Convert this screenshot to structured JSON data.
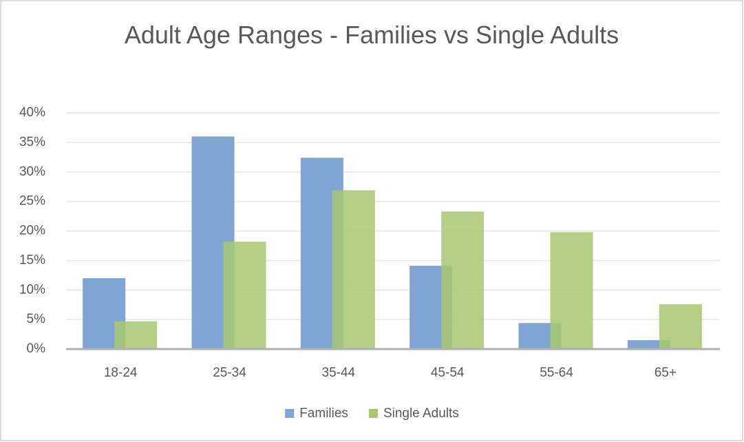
{
  "chart_data": {
    "type": "bar",
    "title": "Adult Age Ranges - Families vs Single Adults",
    "categories": [
      "18-24",
      "25-34",
      "35-44",
      "45-54",
      "55-64",
      "65+"
    ],
    "series": [
      {
        "name": "Families",
        "color": "#7fa5d4",
        "values": [
          12.0,
          36.0,
          32.4,
          14.1,
          4.4,
          1.5
        ]
      },
      {
        "name": "Single Adults",
        "color": "#a8c870",
        "values": [
          4.7,
          18.2,
          26.9,
          23.3,
          19.8,
          7.6
        ]
      }
    ],
    "ylim": [
      0,
      40
    ],
    "yticks": [
      {
        "value": 0,
        "label": "0%"
      },
      {
        "value": 5,
        "label": "5%"
      },
      {
        "value": 10,
        "label": "10%"
      },
      {
        "value": 15,
        "label": "15%"
      },
      {
        "value": 20,
        "label": "20%"
      },
      {
        "value": 25,
        "label": "25%"
      },
      {
        "value": 30,
        "label": "30%"
      },
      {
        "value": 35,
        "label": "35%"
      },
      {
        "value": 40,
        "label": "40%"
      }
    ],
    "grid": true,
    "legend": "bottom"
  }
}
